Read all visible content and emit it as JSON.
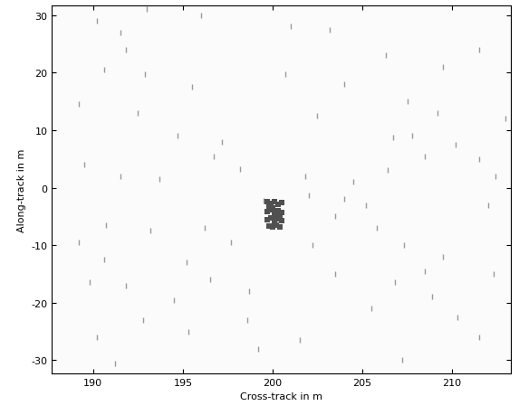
{
  "chart_data": {
    "type": "scatter",
    "x_label": "Cross-track in m",
    "y_label": "Along-track in m",
    "xlim": [
      187.7,
      213.3
    ],
    "ylim": [
      -32.3,
      31.7
    ],
    "xticks": [
      190,
      195,
      200,
      205,
      210
    ],
    "yticks": [
      -30,
      -20,
      -10,
      0,
      10,
      20,
      30
    ],
    "grid": false,
    "series": [
      {
        "color": "#9a9a9a",
        "marker": "vline",
        "x": [
          190.2,
          191.5,
          193,
          196,
          191.8,
          190.6,
          192.9,
          195.5,
          189.2,
          192.5,
          194.7,
          197.2,
          196.7,
          198.2,
          189.5,
          191.5,
          193.7,
          190.7,
          189.2,
          193.2,
          196.2,
          197.7,
          195.2,
          190.6,
          189.8,
          191.8,
          196.5,
          194.5,
          192.8,
          195.3,
          190.2,
          191.2,
          198.6,
          199.2,
          201.5,
          198.7,
          203.5,
          202.2,
          203.5,
          204,
          205.2,
          204.5,
          206.4,
          206.7,
          207.8,
          208.5,
          210.2,
          211.5,
          212.4,
          205.8,
          207.3,
          209.5,
          212.3,
          206.8,
          208.9,
          205.5,
          210.3,
          211.5,
          207.2,
          202.5,
          204,
          206.3,
          209.5,
          211.5,
          203.2,
          201,
          200.7,
          207.5,
          209.2,
          213,
          202,
          201.8,
          199.5,
          208.5,
          212
        ],
        "y": [
          29,
          27,
          31,
          30,
          24,
          20.5,
          19.8,
          17.5,
          14.5,
          13,
          9,
          8,
          5.5,
          3.3,
          4,
          2,
          1.5,
          -6.5,
          -9.5,
          -7.5,
          -7,
          -9.5,
          -13,
          -12.5,
          -16.5,
          -17,
          -16,
          -19.5,
          -23,
          -25,
          -26,
          -30.5,
          -23,
          -28,
          -26.5,
          -18,
          -15,
          -10,
          -5,
          -2,
          -3,
          1,
          3,
          8.7,
          9,
          5.5,
          7.5,
          5,
          2,
          -7,
          -10,
          -12,
          -15,
          -16.5,
          -19,
          -21,
          -22.5,
          -26,
          -30,
          12.5,
          18,
          23,
          21,
          24,
          27.5,
          28,
          19.7,
          15,
          13,
          12,
          -1.3,
          2,
          -2.3,
          -14.5,
          -3
        ]
      },
      {
        "color": "#505050",
        "marker": "square",
        "x": [
          199.7,
          199.9,
          200.1,
          200.3,
          200.5,
          199.7,
          199.9,
          200.1,
          200.3,
          200.5,
          199.7,
          199.9,
          200.1,
          200.3,
          200.5,
          199.8,
          200.0,
          200.2,
          200.4,
          199.8,
          200.0,
          200.2,
          200.4
        ],
        "y": [
          -2.5,
          -2.8,
          -2.4,
          -2.9,
          -2.6,
          -4.2,
          -3.8,
          -4.5,
          -4.0,
          -4.3,
          -5.6,
          -5.2,
          -5.9,
          -5.4,
          -5.7,
          -6.6,
          -6.9,
          -6.5,
          -6.8,
          -3.3,
          -3.5,
          -4.9,
          -5.0
        ]
      }
    ]
  }
}
